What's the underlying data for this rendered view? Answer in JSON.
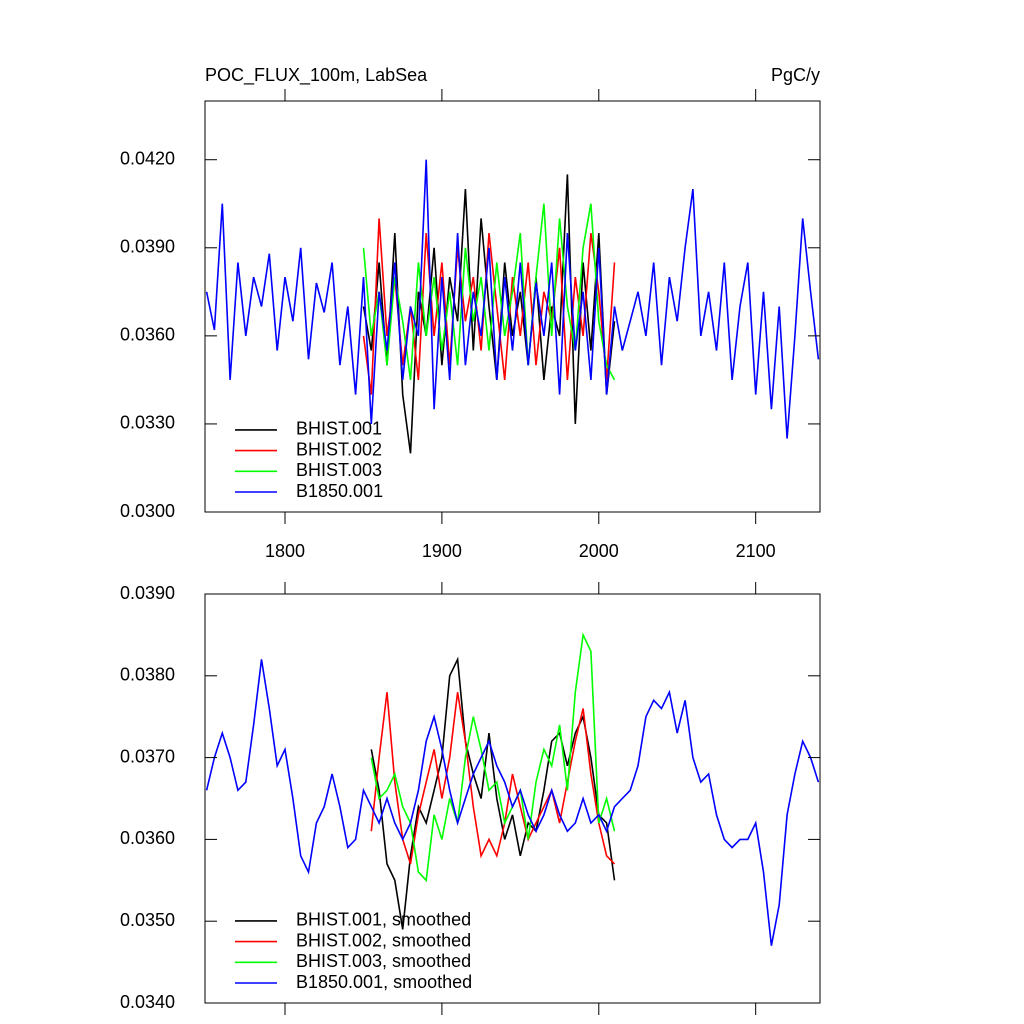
{
  "chart_data": [
    {
      "type": "line",
      "title": "POC_FLUX_100m, LabSea",
      "units": "PgC/y",
      "xlim": [
        1749,
        2141
      ],
      "ylim": [
        0.03,
        0.044
      ],
      "xticks": [
        1800,
        1900,
        2000,
        2100
      ],
      "show_xtick_labels": true,
      "yticks": [
        {
          "value": 0.03,
          "label": "0.0300"
        },
        {
          "value": 0.033,
          "label": "0.0330"
        },
        {
          "value": 0.036,
          "label": "0.0360"
        },
        {
          "value": 0.039,
          "label": "0.0390"
        },
        {
          "value": 0.042,
          "label": "0.0420"
        }
      ],
      "legend": "lower left",
      "series": [
        {
          "name": "BHIST.001",
          "color": "#000000",
          "x": [
            1850,
            1855,
            1860,
            1865,
            1870,
            1875,
            1880,
            1885,
            1890,
            1895,
            1900,
            1905,
            1910,
            1915,
            1920,
            1925,
            1930,
            1935,
            1940,
            1945,
            1950,
            1955,
            1960,
            1965,
            1970,
            1975,
            1980,
            1985,
            1990,
            1995,
            2000,
            2005,
            2010
          ],
          "values": [
            0.037,
            0.0355,
            0.0385,
            0.035,
            0.0395,
            0.034,
            0.032,
            0.0375,
            0.036,
            0.039,
            0.035,
            0.038,
            0.0365,
            0.041,
            0.0355,
            0.04,
            0.037,
            0.0345,
            0.0385,
            0.036,
            0.0375,
            0.035,
            0.038,
            0.0345,
            0.037,
            0.036,
            0.0415,
            0.033,
            0.0385,
            0.0355,
            0.0395,
            0.034,
            0.0365
          ]
        },
        {
          "name": "BHIST.002",
          "color": "#ff0000",
          "x": [
            1850,
            1855,
            1860,
            1865,
            1870,
            1875,
            1880,
            1885,
            1890,
            1895,
            1900,
            1905,
            1910,
            1915,
            1920,
            1925,
            1930,
            1935,
            1940,
            1945,
            1950,
            1955,
            1960,
            1965,
            1970,
            1975,
            1980,
            1985,
            1990,
            1995,
            2000,
            2005,
            2010
          ],
          "values": [
            0.036,
            0.034,
            0.04,
            0.036,
            0.038,
            0.035,
            0.037,
            0.0345,
            0.0395,
            0.036,
            0.0385,
            0.035,
            0.039,
            0.0365,
            0.038,
            0.0355,
            0.0395,
            0.037,
            0.0345,
            0.038,
            0.036,
            0.0385,
            0.035,
            0.0375,
            0.0365,
            0.039,
            0.0345,
            0.038,
            0.036,
            0.0395,
            0.0375,
            0.0345,
            0.0385
          ]
        },
        {
          "name": "BHIST.003",
          "color": "#00ff00",
          "x": [
            1850,
            1855,
            1860,
            1865,
            1870,
            1875,
            1880,
            1885,
            1890,
            1895,
            1900,
            1905,
            1910,
            1915,
            1920,
            1925,
            1930,
            1935,
            1940,
            1945,
            1950,
            1955,
            1960,
            1965,
            1970,
            1975,
            1980,
            1985,
            1990,
            1995,
            2000,
            2005,
            2010
          ],
          "values": [
            0.039,
            0.036,
            0.0375,
            0.035,
            0.038,
            0.0365,
            0.0345,
            0.0385,
            0.036,
            0.038,
            0.0355,
            0.0375,
            0.035,
            0.039,
            0.0365,
            0.038,
            0.0355,
            0.0385,
            0.036,
            0.0375,
            0.0395,
            0.035,
            0.038,
            0.0405,
            0.036,
            0.04,
            0.037,
            0.0355,
            0.039,
            0.0405,
            0.0365,
            0.035,
            0.0345
          ]
        },
        {
          "name": "B1850.001",
          "color": "#0000ff",
          "x": [
            1750,
            1755,
            1760,
            1765,
            1770,
            1775,
            1780,
            1785,
            1790,
            1795,
            1800,
            1805,
            1810,
            1815,
            1820,
            1825,
            1830,
            1835,
            1840,
            1845,
            1850,
            1855,
            1860,
            1865,
            1870,
            1875,
            1880,
            1885,
            1890,
            1895,
            1900,
            1905,
            1910,
            1915,
            1920,
            1925,
            1930,
            1935,
            1940,
            1945,
            1950,
            1955,
            1960,
            1965,
            1970,
            1975,
            1980,
            1985,
            1990,
            1995,
            2000,
            2005,
            2010,
            2015,
            2020,
            2025,
            2030,
            2035,
            2040,
            2045,
            2050,
            2055,
            2060,
            2065,
            2070,
            2075,
            2080,
            2085,
            2090,
            2095,
            2100,
            2105,
            2110,
            2115,
            2120,
            2125,
            2130,
            2135,
            2140
          ],
          "values": [
            0.0375,
            0.0362,
            0.0405,
            0.0345,
            0.0385,
            0.036,
            0.038,
            0.037,
            0.0388,
            0.0355,
            0.038,
            0.0365,
            0.039,
            0.0352,
            0.0378,
            0.0368,
            0.0385,
            0.035,
            0.037,
            0.034,
            0.038,
            0.033,
            0.0375,
            0.0355,
            0.0385,
            0.0345,
            0.037,
            0.036,
            0.042,
            0.0335,
            0.038,
            0.0345,
            0.0395,
            0.035,
            0.0375,
            0.036,
            0.039,
            0.0345,
            0.038,
            0.0355,
            0.0385,
            0.035,
            0.0378,
            0.036,
            0.0385,
            0.034,
            0.0395,
            0.0355,
            0.0375,
            0.0345,
            0.039,
            0.034,
            0.037,
            0.0355,
            0.0365,
            0.0375,
            0.036,
            0.0385,
            0.035,
            0.038,
            0.0365,
            0.039,
            0.041,
            0.036,
            0.0375,
            0.0355,
            0.0385,
            0.0345,
            0.037,
            0.0385,
            0.034,
            0.0375,
            0.0335,
            0.037,
            0.0325,
            0.036,
            0.04,
            0.0375,
            0.0352
          ]
        }
      ]
    },
    {
      "type": "line",
      "xlim": [
        1749,
        2141
      ],
      "ylim": [
        0.034,
        0.039
      ],
      "xticks": [
        1800,
        1900,
        2000,
        2100
      ],
      "show_xtick_labels": false,
      "yticks": [
        {
          "value": 0.034,
          "label": "0.0340"
        },
        {
          "value": 0.035,
          "label": "0.0350"
        },
        {
          "value": 0.036,
          "label": "0.0360"
        },
        {
          "value": 0.037,
          "label": "0.0370"
        },
        {
          "value": 0.038,
          "label": "0.0380"
        },
        {
          "value": 0.039,
          "label": "0.0390"
        }
      ],
      "legend": "lower left",
      "series": [
        {
          "name": "BHIST.001, smoothed",
          "color": "#000000",
          "x": [
            1855,
            1860,
            1865,
            1870,
            1875,
            1880,
            1885,
            1890,
            1895,
            1900,
            1905,
            1910,
            1915,
            1920,
            1925,
            1930,
            1935,
            1940,
            1945,
            1950,
            1955,
            1960,
            1965,
            1970,
            1975,
            1980,
            1985,
            1990,
            1995,
            2000,
            2005,
            2010
          ],
          "values": [
            0.0371,
            0.0366,
            0.0357,
            0.0355,
            0.0349,
            0.0358,
            0.0364,
            0.0362,
            0.0366,
            0.037,
            0.038,
            0.0382,
            0.0372,
            0.0368,
            0.0365,
            0.0373,
            0.0365,
            0.036,
            0.0363,
            0.0358,
            0.0362,
            0.0361,
            0.0366,
            0.0372,
            0.0373,
            0.0369,
            0.0373,
            0.0375,
            0.037,
            0.0363,
            0.0362,
            0.0355
          ]
        },
        {
          "name": "BHIST.002, smoothed",
          "color": "#ff0000",
          "x": [
            1855,
            1860,
            1865,
            1870,
            1875,
            1880,
            1885,
            1890,
            1895,
            1900,
            1905,
            1910,
            1915,
            1920,
            1925,
            1930,
            1935,
            1940,
            1945,
            1950,
            1955,
            1960,
            1965,
            1970,
            1975,
            1980,
            1985,
            1990,
            1995,
            2000,
            2005,
            2010
          ],
          "values": [
            0.0361,
            0.037,
            0.0378,
            0.0367,
            0.036,
            0.0357,
            0.0363,
            0.0367,
            0.0371,
            0.0365,
            0.037,
            0.0378,
            0.0372,
            0.0364,
            0.0358,
            0.036,
            0.0358,
            0.0362,
            0.0368,
            0.0364,
            0.036,
            0.0362,
            0.0364,
            0.0366,
            0.0362,
            0.0367,
            0.0372,
            0.0376,
            0.0368,
            0.0362,
            0.0358,
            0.0357
          ]
        },
        {
          "name": "BHIST.003, smoothed",
          "color": "#00ff00",
          "x": [
            1855,
            1860,
            1865,
            1870,
            1875,
            1880,
            1885,
            1890,
            1895,
            1900,
            1905,
            1910,
            1915,
            1920,
            1925,
            1930,
            1935,
            1940,
            1945,
            1950,
            1955,
            1960,
            1965,
            1970,
            1975,
            1980,
            1985,
            1990,
            1995,
            2000,
            2005,
            2010
          ],
          "values": [
            0.037,
            0.0365,
            0.0366,
            0.0368,
            0.0364,
            0.0362,
            0.0356,
            0.0355,
            0.0363,
            0.036,
            0.0365,
            0.0362,
            0.037,
            0.0375,
            0.0371,
            0.0366,
            0.0367,
            0.0362,
            0.0364,
            0.0366,
            0.036,
            0.0367,
            0.0371,
            0.0369,
            0.0374,
            0.0366,
            0.0378,
            0.0385,
            0.0383,
            0.0362,
            0.0365,
            0.0361
          ]
        },
        {
          "name": "B1850.001, smoothed",
          "color": "#0000ff",
          "x": [
            1750,
            1755,
            1760,
            1765,
            1770,
            1775,
            1780,
            1785,
            1790,
            1795,
            1800,
            1805,
            1810,
            1815,
            1820,
            1825,
            1830,
            1835,
            1840,
            1845,
            1850,
            1855,
            1860,
            1865,
            1870,
            1875,
            1880,
            1885,
            1890,
            1895,
            1900,
            1905,
            1910,
            1915,
            1920,
            1925,
            1930,
            1935,
            1940,
            1945,
            1950,
            1955,
            1960,
            1965,
            1970,
            1975,
            1980,
            1985,
            1990,
            1995,
            2000,
            2005,
            2010,
            2015,
            2020,
            2025,
            2030,
            2035,
            2040,
            2045,
            2050,
            2055,
            2060,
            2065,
            2070,
            2075,
            2080,
            2085,
            2090,
            2095,
            2100,
            2105,
            2110,
            2115,
            2120,
            2125,
            2130,
            2135,
            2140
          ],
          "values": [
            0.0366,
            0.037,
            0.0373,
            0.037,
            0.0366,
            0.0367,
            0.0374,
            0.0382,
            0.0376,
            0.0369,
            0.0371,
            0.0365,
            0.0358,
            0.0356,
            0.0362,
            0.0364,
            0.0368,
            0.0364,
            0.0359,
            0.036,
            0.0366,
            0.0364,
            0.0362,
            0.0365,
            0.0362,
            0.036,
            0.0362,
            0.0366,
            0.0372,
            0.0375,
            0.0371,
            0.0366,
            0.0362,
            0.0365,
            0.0368,
            0.037,
            0.0372,
            0.0369,
            0.0367,
            0.0364,
            0.0366,
            0.0363,
            0.0361,
            0.0363,
            0.0366,
            0.0363,
            0.0361,
            0.0362,
            0.0365,
            0.0362,
            0.0363,
            0.0361,
            0.0364,
            0.0365,
            0.0366,
            0.0369,
            0.0375,
            0.0377,
            0.0376,
            0.0378,
            0.0373,
            0.0377,
            0.037,
            0.0367,
            0.0368,
            0.0363,
            0.036,
            0.0359,
            0.036,
            0.036,
            0.0362,
            0.0356,
            0.0347,
            0.0352,
            0.0363,
            0.0368,
            0.0372,
            0.037,
            0.0367
          ]
        }
      ]
    }
  ]
}
